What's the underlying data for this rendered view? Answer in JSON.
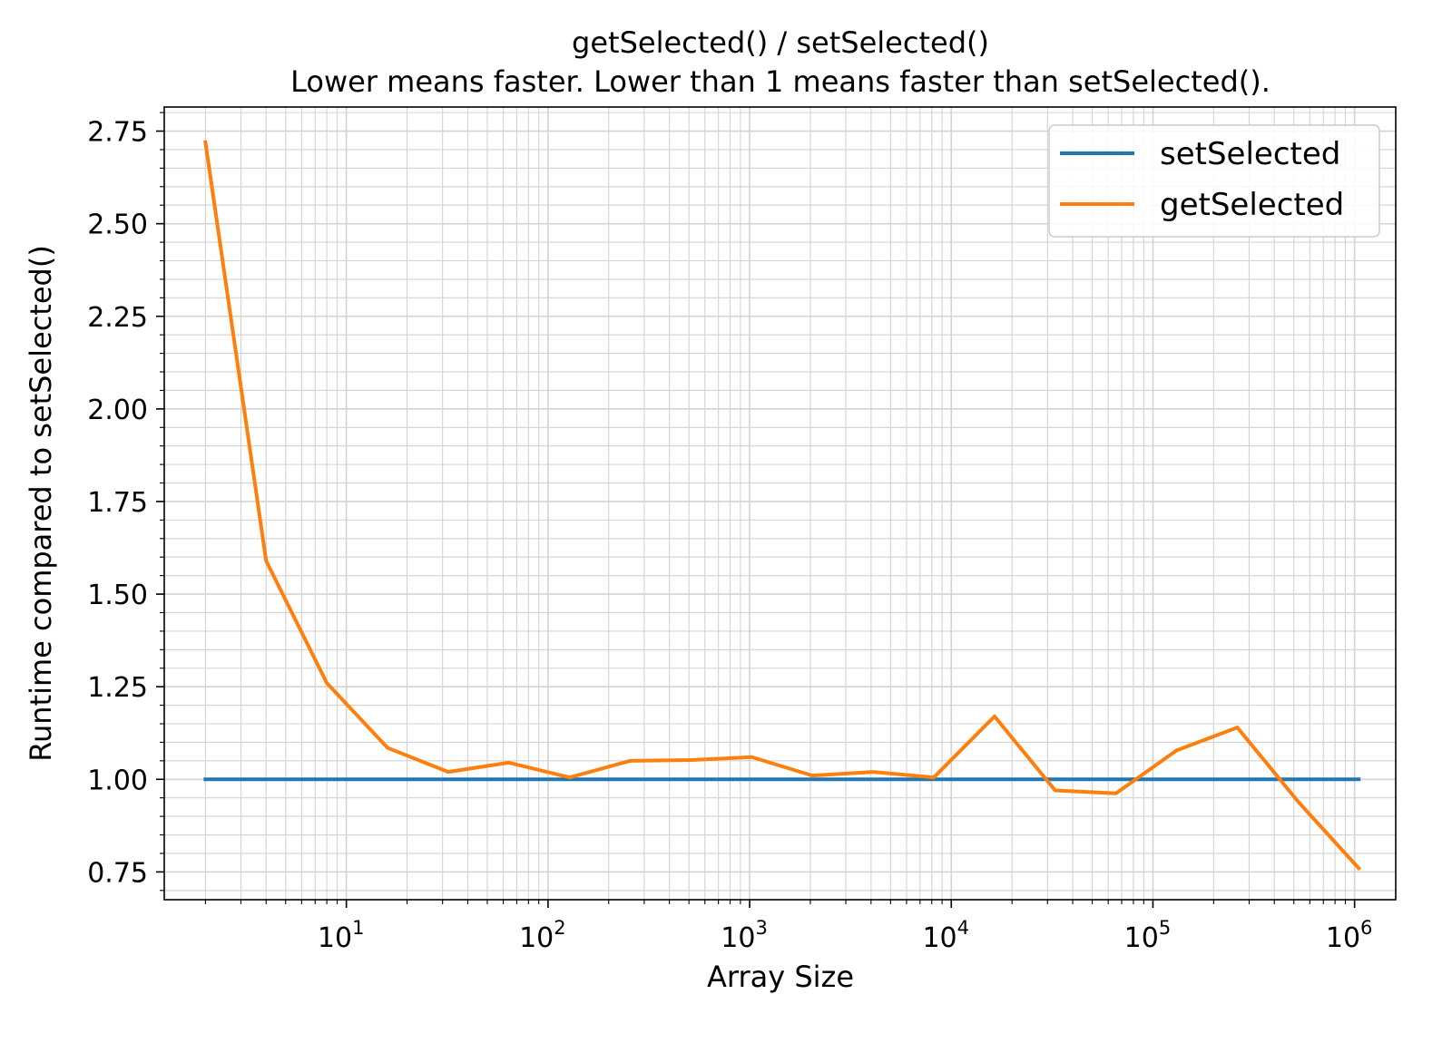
{
  "chart_data": {
    "type": "line",
    "title": "getSelected() / setSelected()",
    "subtitle": "Lower means faster. Lower than 1 means faster than setSelected().",
    "xlabel": "Array Size",
    "ylabel": "Runtime compared to setSelected()",
    "x_scale": "log",
    "xlim": [
      1.25,
      1600000
    ],
    "ylim": [
      0.675,
      2.815
    ],
    "grid": true,
    "legend_position": "top-right",
    "x_ticks": [
      {
        "value": 10,
        "base": "10",
        "exp": "1"
      },
      {
        "value": 100,
        "base": "10",
        "exp": "2"
      },
      {
        "value": 1000,
        "base": "10",
        "exp": "3"
      },
      {
        "value": 10000,
        "base": "10",
        "exp": "4"
      },
      {
        "value": 100000,
        "base": "10",
        "exp": "5"
      },
      {
        "value": 1000000,
        "base": "10",
        "exp": "6"
      }
    ],
    "y_ticks": [
      "0.75",
      "1.00",
      "1.25",
      "1.50",
      "1.75",
      "2.00",
      "2.25",
      "2.50",
      "2.75"
    ],
    "x": [
      2,
      4,
      8,
      16,
      32,
      64,
      128,
      256,
      512,
      1024,
      2048,
      4096,
      8192,
      16384,
      32768,
      65536,
      131072,
      262144,
      524288,
      1048576
    ],
    "series": [
      {
        "name": "setSelected",
        "color": "#1f77b4",
        "values": [
          1,
          1,
          1,
          1,
          1,
          1,
          1,
          1,
          1,
          1,
          1,
          1,
          1,
          1,
          1,
          1,
          1,
          1,
          1,
          1
        ]
      },
      {
        "name": "getSelected",
        "color": "#ff7f0e",
        "values": [
          2.72,
          1.59,
          1.26,
          1.085,
          1.02,
          1.045,
          1.005,
          1.05,
          1.052,
          1.06,
          1.01,
          1.02,
          1.005,
          1.17,
          0.97,
          0.962,
          1.078,
          1.14,
          0.94,
          0.76
        ]
      }
    ]
  }
}
